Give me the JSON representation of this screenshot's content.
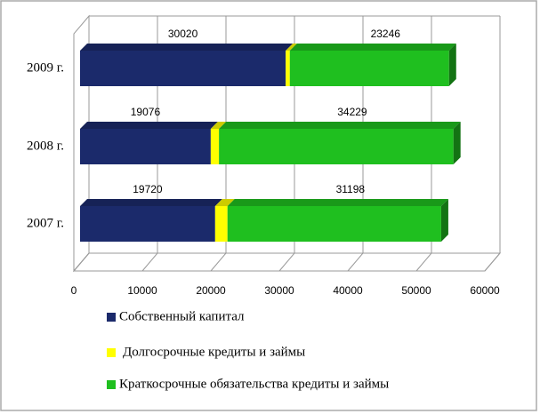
{
  "chart_data": {
    "type": "bar3d_stacked_horizontal",
    "categories": [
      "2009 г.",
      "2008 г.",
      "2007 г."
    ],
    "series": [
      {
        "name": "Собственный капитал",
        "color": "#1b2a6b",
        "values": [
          30020,
          19076,
          19720
        ]
      },
      {
        "name": "Долгосрочные кредиты и займы",
        "color": "#ffff00",
        "values": [
          600,
          1200,
          1800
        ]
      },
      {
        "name": "Краткосрочные обязательства кредиты и займы",
        "color": "#1fbf1f",
        "values": [
          23246,
          34229,
          31198
        ]
      }
    ],
    "xlim": [
      0,
      60000
    ],
    "xticks": [
      0,
      10000,
      20000,
      30000,
      40000,
      50000,
      60000
    ],
    "grid": true
  }
}
